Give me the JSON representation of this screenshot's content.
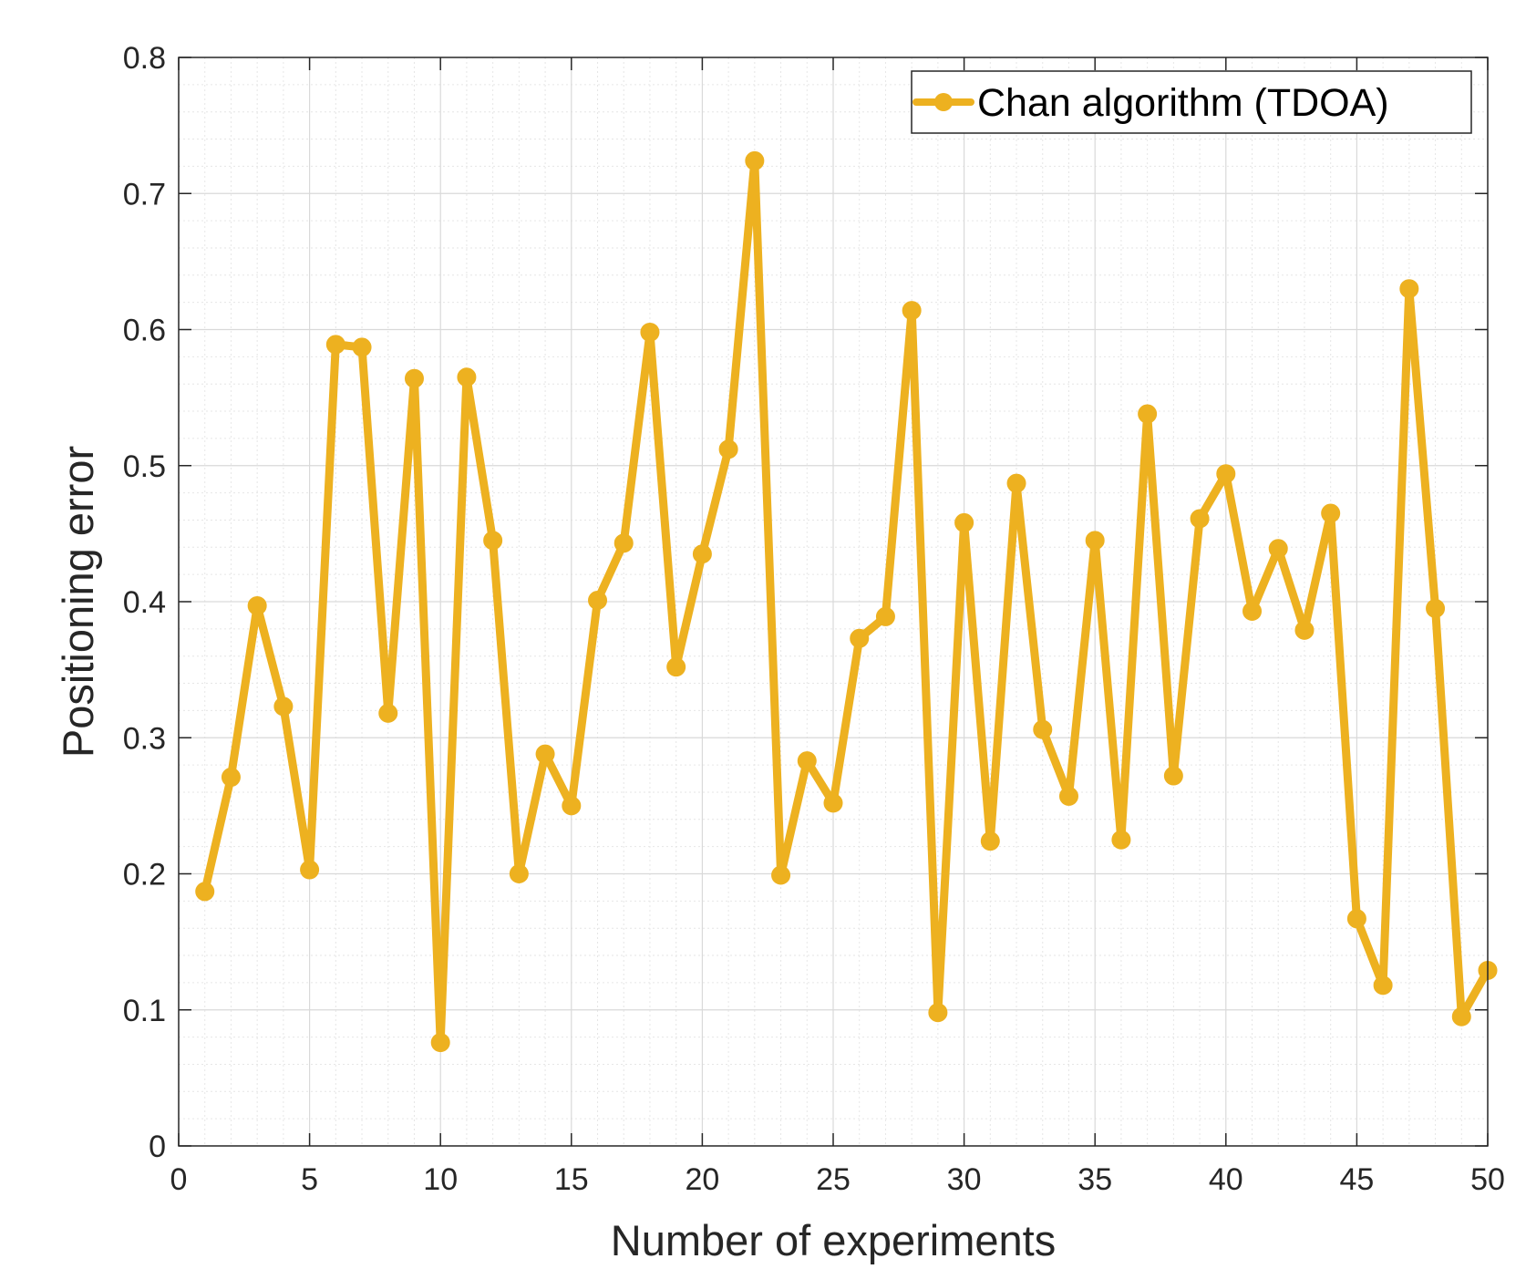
{
  "chart_data": {
    "type": "line",
    "title": "",
    "xlabel": "Number of experiments",
    "ylabel": "Positioning error",
    "xlim": [
      0,
      50
    ],
    "ylim": [
      0,
      0.8
    ],
    "xticks": [
      "0",
      "5",
      "10",
      "15",
      "20",
      "25",
      "30",
      "35",
      "40",
      "45",
      "50"
    ],
    "yticks": [
      "0",
      "0.1",
      "0.2",
      "0.3",
      "0.4",
      "0.5",
      "0.6",
      "0.7",
      "0.8"
    ],
    "grid": true,
    "minor_grid": true,
    "legend_position": "top-right",
    "series": [
      {
        "name": "Chan algorithm (TDOA)",
        "color": "#EDB120",
        "marker": "circle",
        "x": [
          1,
          2,
          3,
          4,
          5,
          6,
          7,
          8,
          9,
          10,
          11,
          12,
          13,
          14,
          15,
          16,
          17,
          18,
          19,
          20,
          21,
          22,
          23,
          24,
          25,
          26,
          27,
          28,
          29,
          30,
          31,
          32,
          33,
          34,
          35,
          36,
          37,
          38,
          39,
          40,
          41,
          42,
          43,
          44,
          45,
          46,
          47,
          48,
          49,
          50
        ],
        "values": [
          0.187,
          0.271,
          0.397,
          0.323,
          0.203,
          0.589,
          0.587,
          0.318,
          0.564,
          0.076,
          0.565,
          0.445,
          0.2,
          0.288,
          0.25,
          0.401,
          0.443,
          0.598,
          0.352,
          0.435,
          0.512,
          0.724,
          0.199,
          0.283,
          0.252,
          0.373,
          0.389,
          0.614,
          0.098,
          0.458,
          0.224,
          0.487,
          0.306,
          0.257,
          0.445,
          0.225,
          0.538,
          0.272,
          0.461,
          0.494,
          0.393,
          0.439,
          0.379,
          0.465,
          0.167,
          0.118,
          0.63,
          0.395,
          0.095,
          0.129
        ]
      }
    ]
  }
}
